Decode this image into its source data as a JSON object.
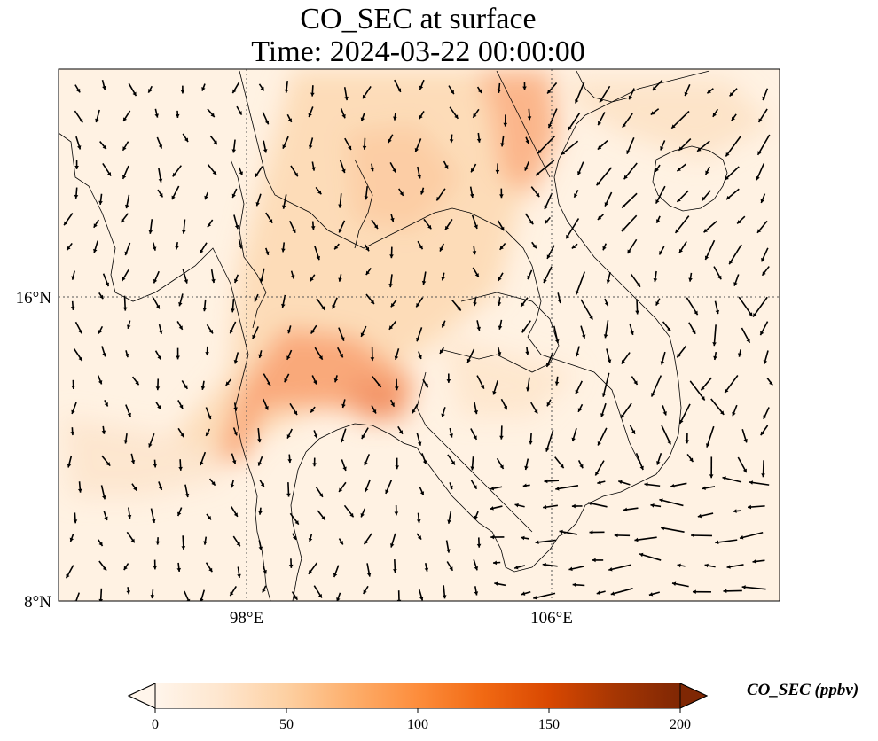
{
  "title": {
    "line1": "CO_SEC at surface",
    "line2": "Time: 2024-03-22 00:00:00"
  },
  "map": {
    "lat_ticks": [
      "16°N",
      "8°N"
    ],
    "lon_ticks": [
      "98°E",
      "106°E"
    ],
    "extent": {
      "lon": [
        93,
        111.9
      ],
      "lat": [
        8,
        21.9
      ]
    },
    "gridlines": "dotted"
  },
  "colorbar": {
    "label": "CO_SEC (ppbv)",
    "ticks": [
      "0",
      "50",
      "100",
      "150",
      "200"
    ],
    "range": [
      0,
      200
    ],
    "extend": "both",
    "colormap": [
      "#fff5eb",
      "#fee6ce",
      "#fdd0a2",
      "#fdae6b",
      "#fd8d3c",
      "#f16913",
      "#d94801",
      "#a63603",
      "#7f2704"
    ]
  },
  "colors": {
    "coastline": "#000000",
    "arrows": "#000000"
  }
}
